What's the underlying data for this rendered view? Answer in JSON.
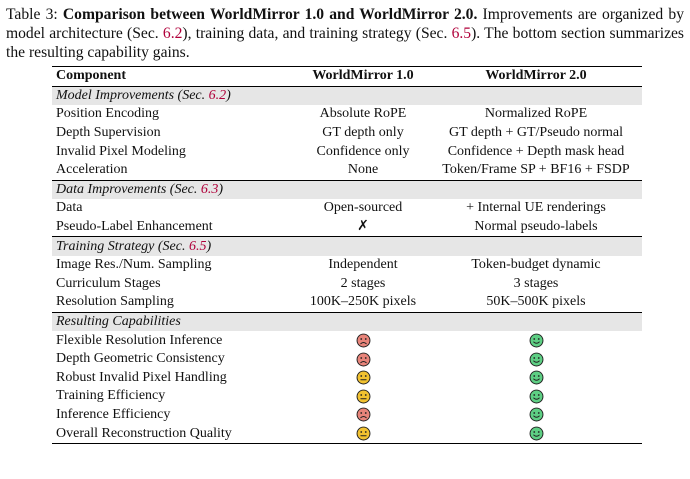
{
  "caption": {
    "label": "Table 3:",
    "title": "Comparison between WorldMirror 1.0 and WorldMirror 2.0.",
    "text_a": " Improvements are organized by model architecture (Sec. ",
    "ref_a": "6.2",
    "text_b": "), training data, and training strategy (Sec. ",
    "ref_b": "6.5",
    "text_c": "). The bottom section summarizes the resulting capability gains."
  },
  "header": {
    "component": "Component",
    "v1": "WorldMirror 1.0",
    "v2": "WorldMirror 2.0"
  },
  "sections": [
    {
      "title_prefix": "Model Improvements (Sec. ",
      "title_ref": "6.2",
      "title_suffix": ")",
      "rows": [
        {
          "name": "Position Encoding",
          "v1": "Absolute RoPE",
          "v2": "Normalized RoPE"
        },
        {
          "name": "Depth Supervision",
          "v1": "GT depth only",
          "v2": "GT depth + GT/Pseudo normal"
        },
        {
          "name": "Invalid Pixel Modeling",
          "v1": "Confidence only",
          "v2": "Confidence + Depth mask head"
        },
        {
          "name": "Acceleration",
          "v1": "None",
          "v2": "Token/Frame SP + BF16 + FSDP"
        }
      ]
    },
    {
      "title_prefix": "Data Improvements (Sec. ",
      "title_ref": "6.3",
      "title_suffix": ")",
      "rows": [
        {
          "name": "Data",
          "v1": "Open-sourced",
          "v2": "+ Internal UE renderings"
        },
        {
          "name": "Pseudo-Label Enhancement",
          "v1": "✗",
          "v2": "Normal pseudo-labels"
        }
      ]
    },
    {
      "title_prefix": "Training Strategy (Sec. ",
      "title_ref": "6.5",
      "title_suffix": ")",
      "rows": [
        {
          "name": "Image Res./Num. Sampling",
          "v1": "Independent",
          "v2": "Token-budget dynamic"
        },
        {
          "name": "Curriculum Stages",
          "v1": "2 stages",
          "v2": "3 stages"
        },
        {
          "name": "Resolution Sampling",
          "v1": "100K–250K pixels",
          "v2": "50K–500K pixels"
        }
      ]
    }
  ],
  "capabilities": {
    "title": "Resulting Capabilities",
    "rows": [
      {
        "name": "Flexible Resolution Inference",
        "v1": "sad",
        "v2": "happy"
      },
      {
        "name": "Depth Geometric Consistency",
        "v1": "sad",
        "v2": "happy"
      },
      {
        "name": "Robust Invalid Pixel Handling",
        "v1": "neutral",
        "v2": "happy"
      },
      {
        "name": "Training Efficiency",
        "v1": "neutral",
        "v2": "happy"
      },
      {
        "name": "Inference Efficiency",
        "v1": "sad",
        "v2": "happy"
      },
      {
        "name": "Overall Reconstruction Quality",
        "v1": "neutral",
        "v2": "happy"
      }
    ]
  },
  "face_colors": {
    "sad": "#e8847a",
    "neutral": "#f2c230",
    "happy": "#5ecf84"
  },
  "face_icons": {
    "sad": "sad-face-icon",
    "neutral": "neutral-face-icon",
    "happy": "happy-face-icon"
  }
}
